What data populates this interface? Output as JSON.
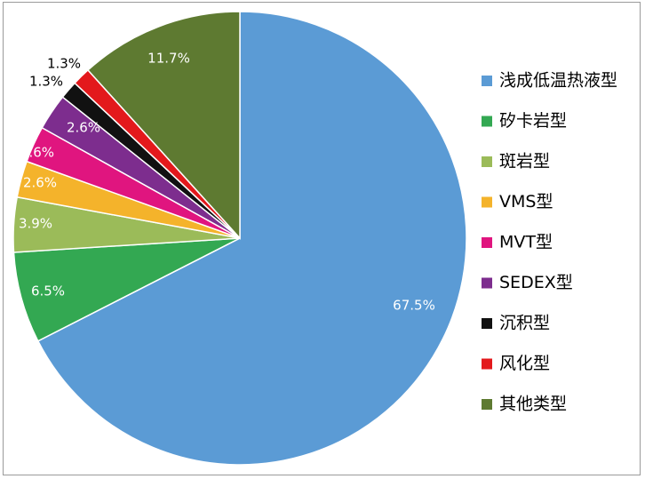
{
  "chart_data": {
    "type": "pie",
    "title": "",
    "legend_position": "right",
    "categories": [
      "浅成低温热液型",
      "矽卡岩型",
      "斑岩型",
      "VMS型",
      "MVT型",
      "SEDEX型",
      "沉积型",
      "风化型",
      "其他类型"
    ],
    "values": [
      67.5,
      6.5,
      3.9,
      2.6,
      2.6,
      2.6,
      1.3,
      1.3,
      11.7
    ],
    "labels": [
      "67.5%",
      "6.5%",
      "3.9%",
      "2.6%",
      "2.6%",
      "2.6%",
      "1.3%",
      "1.3%",
      "11.7%"
    ],
    "colors": [
      "#5b9bd5",
      "#33a852",
      "#9bbb59",
      "#f4b32b",
      "#e0157f",
      "#7d2d8e",
      "#111111",
      "#e3191c",
      "#5e7a31"
    ],
    "label_colors": [
      "#ffffff",
      "#ffffff",
      "#ffffff",
      "#ffffff",
      "#ffffff",
      "#ffffff",
      "#000000",
      "#000000",
      "#ffffff"
    ],
    "start_angle_deg": 0,
    "direction": "clockwise"
  }
}
